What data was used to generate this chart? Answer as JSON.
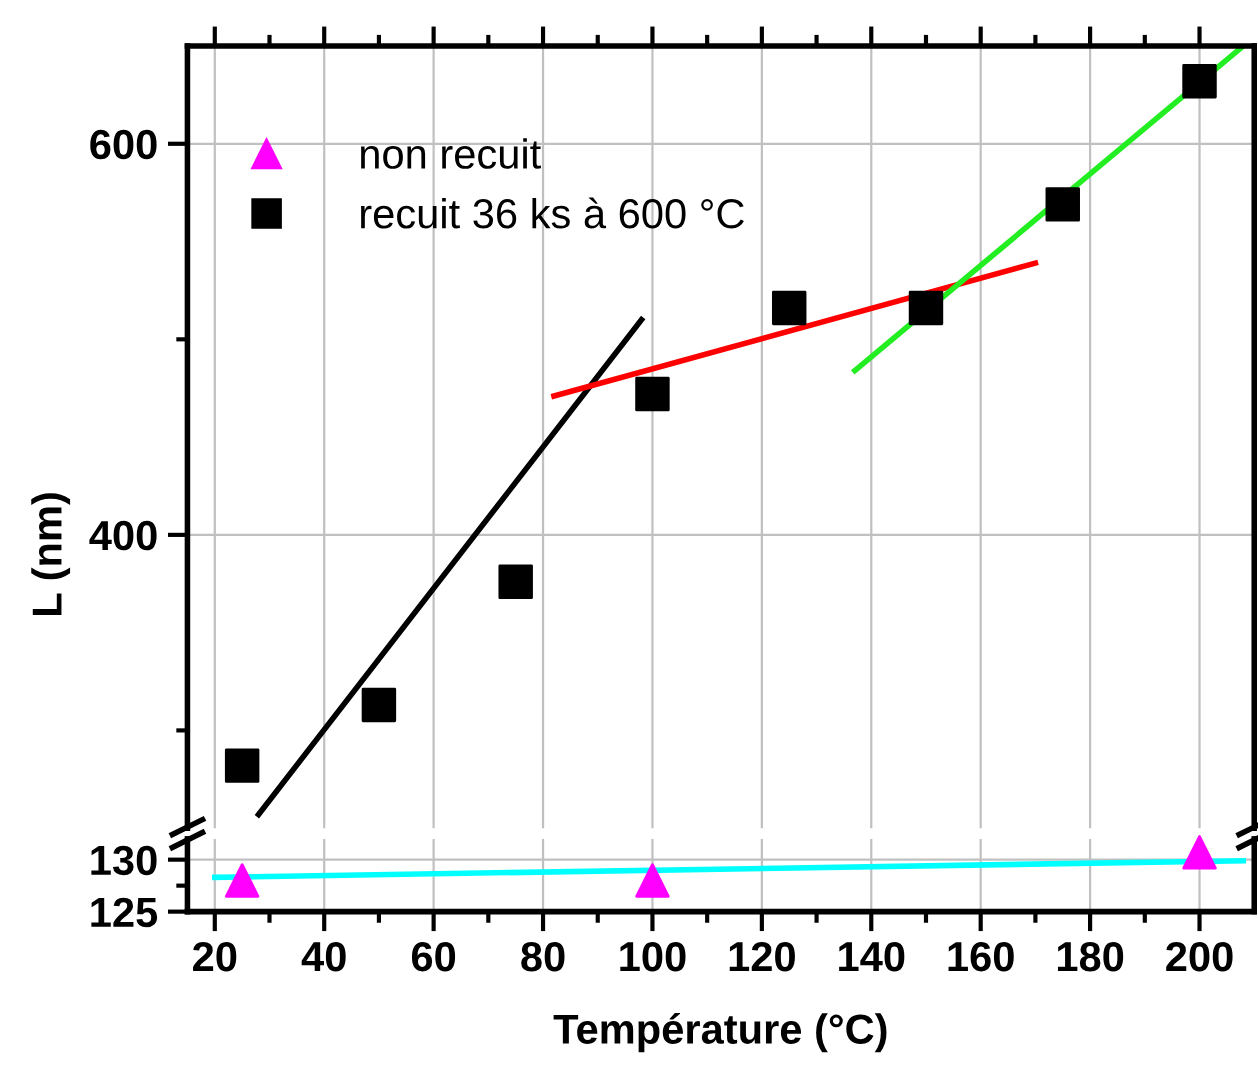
{
  "chart_data": [
    {
      "type": "scatter",
      "ylabel": "L (nm)",
      "xlim": [
        15,
        210
      ],
      "ylim": [
        250,
        650
      ],
      "xticks": [
        20,
        {
          "value": 30,
          "label": null
        },
        40,
        {
          "value": 50,
          "label": null
        },
        60,
        {
          "value": 70,
          "label": null
        },
        80,
        {
          "value": 90,
          "label": null
        },
        100,
        {
          "value": 110,
          "label": null
        },
        120,
        {
          "value": 130,
          "label": null
        },
        140,
        {
          "value": 150,
          "label": null
        },
        160,
        {
          "value": 170,
          "label": null
        },
        180,
        {
          "value": 190,
          "label": null
        },
        200
      ],
      "yticks": [
        {
          "value": 300,
          "label": null
        },
        400,
        {
          "value": 500,
          "label": null
        },
        600
      ],
      "tick_labels": "y",
      "grid": true,
      "legend": "top left",
      "series": [
        {
          "name": "recuit 36 ks à 600 °C",
          "color": "#000000",
          "marker": "square",
          "x": [
            25,
            50,
            75,
            100,
            125,
            150,
            175,
            200
          ],
          "values": [
            282,
            313,
            376,
            472,
            516,
            516,
            569,
            632
          ]
        },
        {
          "type": "line",
          "color": "#000000",
          "x": [
            28,
            98
          ],
          "values": [
            257,
            510
          ]
        },
        {
          "type": "line",
          "color": "#ff0000",
          "x": [
            82,
            170
          ],
          "values": [
            471,
            539
          ]
        },
        {
          "type": "line",
          "color": "#22ee22",
          "x": [
            137,
            208
          ],
          "values": [
            484,
            650
          ]
        }
      ]
    },
    {
      "type": "scatter",
      "xlabel": "Température (°C)",
      "xlim": [
        15,
        210
      ],
      "ylim": [
        125,
        132
      ],
      "xticks": [
        20,
        {
          "value": 30,
          "label": null
        },
        40,
        {
          "value": 50,
          "label": null
        },
        60,
        {
          "value": 70,
          "label": null
        },
        80,
        {
          "value": 90,
          "label": null
        },
        100,
        {
          "value": 110,
          "label": null
        },
        120,
        {
          "value": 130,
          "label": null
        },
        140,
        {
          "value": 150,
          "label": null
        },
        160,
        {
          "value": 170,
          "label": null
        },
        180,
        {
          "value": 190,
          "label": null
        },
        200
      ],
      "yticks": [
        125,
        {
          "value": 127.5,
          "label": null
        },
        130
      ],
      "grid": true,
      "series": [
        {
          "name": "non recuit",
          "color": "#ff00ff",
          "marker": "triangle",
          "x": [
            25,
            100,
            200
          ],
          "values": [
            128,
            128,
            130.7
          ]
        },
        {
          "type": "line",
          "color": "#00ffff",
          "x": [
            20,
            208
          ],
          "values": [
            128.3,
            129.9
          ]
        }
      ]
    }
  ]
}
